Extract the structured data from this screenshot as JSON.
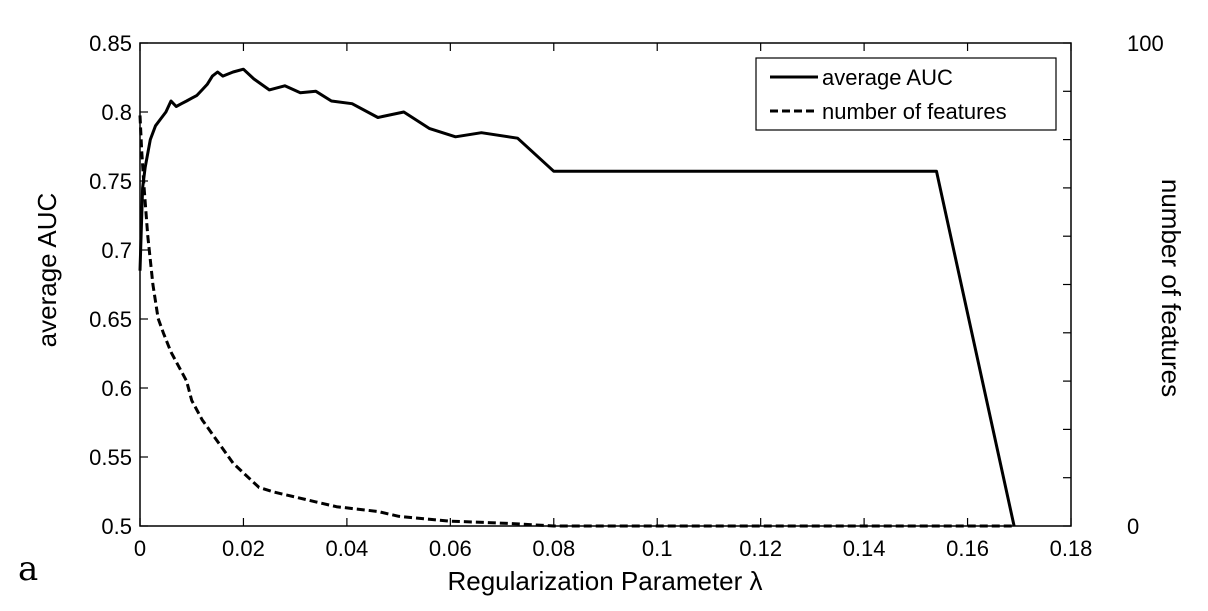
{
  "panel_label": "a",
  "chart_data": {
    "type": "line",
    "xlabel": "Regularization Parameter λ",
    "ylabel_left": "average AUC",
    "ylabel_right": "number of features",
    "xlim": [
      0,
      0.18
    ],
    "ylim_left": [
      0.5,
      0.85
    ],
    "ylim_right": [
      0,
      100
    ],
    "x_ticks": [
      "0",
      "0.02",
      "0.04",
      "0.06",
      "0.08",
      "0.1",
      "0.12",
      "0.14",
      "0.16",
      "0.18"
    ],
    "y_left_ticks": [
      "0.5",
      "0.55",
      "0.6",
      "0.65",
      "0.7",
      "0.75",
      "0.8",
      "0.85"
    ],
    "y_right_ticks": [
      "0",
      "100"
    ],
    "grid": false,
    "legend_position": "top-right",
    "series": [
      {
        "name": "average AUC",
        "axis": "left",
        "style": "solid",
        "x": [
          0.0,
          0.0005,
          0.001,
          0.002,
          0.003,
          0.004,
          0.005,
          0.006,
          0.007,
          0.008,
          0.009,
          0.01,
          0.011,
          0.012,
          0.013,
          0.014,
          0.015,
          0.016,
          0.018,
          0.02,
          0.022,
          0.025,
          0.028,
          0.031,
          0.034,
          0.037,
          0.041,
          0.046,
          0.051,
          0.056,
          0.061,
          0.066,
          0.073,
          0.08,
          0.1,
          0.12,
          0.14,
          0.154,
          0.169
        ],
        "y": [
          0.685,
          0.745,
          0.76,
          0.78,
          0.79,
          0.795,
          0.8,
          0.808,
          0.804,
          0.806,
          0.808,
          0.81,
          0.812,
          0.816,
          0.82,
          0.826,
          0.829,
          0.826,
          0.829,
          0.831,
          0.824,
          0.816,
          0.819,
          0.814,
          0.815,
          0.808,
          0.806,
          0.796,
          0.8,
          0.788,
          0.782,
          0.785,
          0.781,
          0.757,
          0.757,
          0.757,
          0.757,
          0.757,
          0.5
        ]
      },
      {
        "name": "number of features",
        "axis": "right",
        "style": "dashed",
        "x": [
          0.0,
          0.0003,
          0.0008,
          0.0015,
          0.0025,
          0.0035,
          0.0045,
          0.006,
          0.008,
          0.009,
          0.01,
          0.012,
          0.014,
          0.016,
          0.018,
          0.02,
          0.023,
          0.026,
          0.03,
          0.034,
          0.038,
          0.042,
          0.046,
          0.05,
          0.055,
          0.06,
          0.065,
          0.072,
          0.08,
          0.1,
          0.12,
          0.14,
          0.155,
          0.162,
          0.169
        ],
        "y": [
          85,
          78,
          70,
          60,
          50,
          43,
          40,
          36,
          32,
          30,
          26,
          22,
          19,
          16,
          13,
          11,
          8,
          7,
          6,
          5,
          4,
          3.5,
          3,
          2,
          1.5,
          1,
          0.8,
          0.5,
          0,
          0,
          0,
          0,
          0,
          0,
          0
        ]
      }
    ]
  }
}
